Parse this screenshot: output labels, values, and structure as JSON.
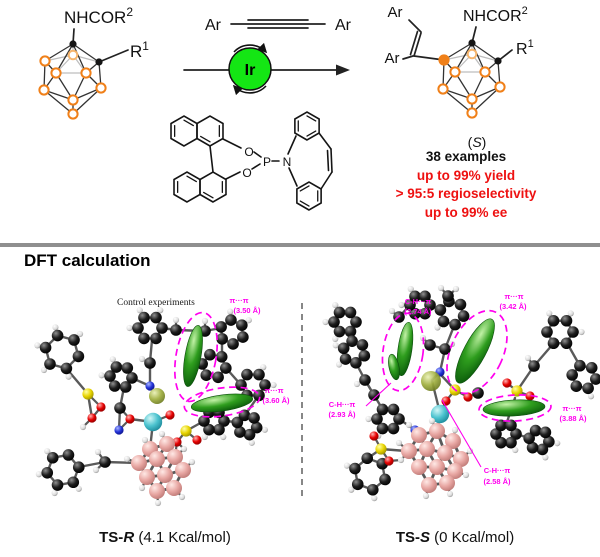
{
  "scheme": {
    "reactant": {
      "amide": "NHCOR",
      "amide_sup": "2",
      "r": "R",
      "r_sup": "1"
    },
    "alkyne": {
      "left": "Ar",
      "right": "Ar"
    },
    "catalyst": "Ir",
    "ligand": {
      "o_top": "O",
      "o_bottom": "O",
      "p": "P",
      "n": "N"
    },
    "product": {
      "ar_top": "Ar",
      "ar_bottom": "Ar",
      "amide": "NHCOR",
      "amide_sup": "2",
      "r": "R",
      "r_sup": "1",
      "stereo_open": "(",
      "stereo": "S",
      "stereo_close": ")"
    },
    "results": {
      "examples": "38 examples",
      "yield": "up to 99% yield",
      "regio": "> 95:5 regioselectivity",
      "ee": "up to 99% ee"
    }
  },
  "dft": {
    "heading": "DFT calculation",
    "left": {
      "watermark": "Control experiments",
      "annotations": [
        {
          "label": "π···π",
          "value": "(3.50 Å)"
        },
        {
          "label": "π···π",
          "value": "(3.60 Å)"
        }
      ],
      "caption": {
        "prefix": "TS-",
        "stereo": "R",
        "energy": " (4.1 Kcal/mol)"
      }
    },
    "right": {
      "annotations": [
        {
          "label": "C-H···π",
          "value": "(2.74 Å)"
        },
        {
          "label": "π···π",
          "value": "(3.42 Å)"
        },
        {
          "label": "C-H···π",
          "value": "(2.93 Å)"
        },
        {
          "label": "π···π",
          "value": "(3.88 Å)"
        },
        {
          "label": "C-H···π",
          "value": "(2.58 Å)"
        }
      ],
      "caption": {
        "prefix": "TS-",
        "stereo": "S",
        "energy": " (0 Kcal/mol)"
      }
    }
  },
  "colors": {
    "accent_green": "#14e614",
    "result_red": "#ee1111",
    "annotation_magenta": "#ff00ee",
    "boron_pink": "#e8a7a3",
    "divider_gray": "#8f8f8f"
  }
}
